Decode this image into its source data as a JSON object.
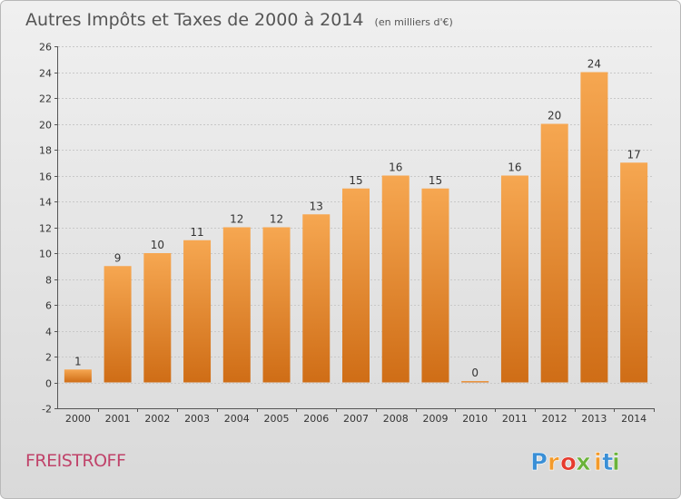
{
  "chart_data": {
    "type": "bar",
    "title": "Autres Impôts et Taxes de 2000 à 2014",
    "subtitle": "(en milliers d'€)",
    "categories": [
      "2000",
      "2001",
      "2002",
      "2003",
      "2004",
      "2005",
      "2006",
      "2007",
      "2008",
      "2009",
      "2010",
      "2011",
      "2012",
      "2013",
      "2014"
    ],
    "values": [
      1,
      9,
      10,
      11,
      12,
      12,
      13,
      15,
      16,
      15,
      0,
      16,
      20,
      24,
      17
    ],
    "ylim": [
      -2,
      26
    ],
    "yticks": [
      -2,
      0,
      2,
      4,
      6,
      8,
      10,
      12,
      14,
      16,
      18,
      20,
      22,
      24,
      26
    ],
    "grid": true,
    "xlabel": "",
    "ylabel": ""
  },
  "place_name": "FREISTROFF",
  "brand": {
    "letters": [
      "P",
      "r",
      "o",
      "x",
      "i",
      "t",
      "i"
    ],
    "colors": [
      "#3a8fd6",
      "#f39a2a",
      "#e63b2e",
      "#6bb33a",
      "#f39a2a",
      "#3a8fd6",
      "#6bb33a"
    ]
  },
  "colors": {
    "bar_light": "#f6a751",
    "bar_dark": "#cf6d16",
    "place": "#c0436a",
    "title": "#555555"
  }
}
